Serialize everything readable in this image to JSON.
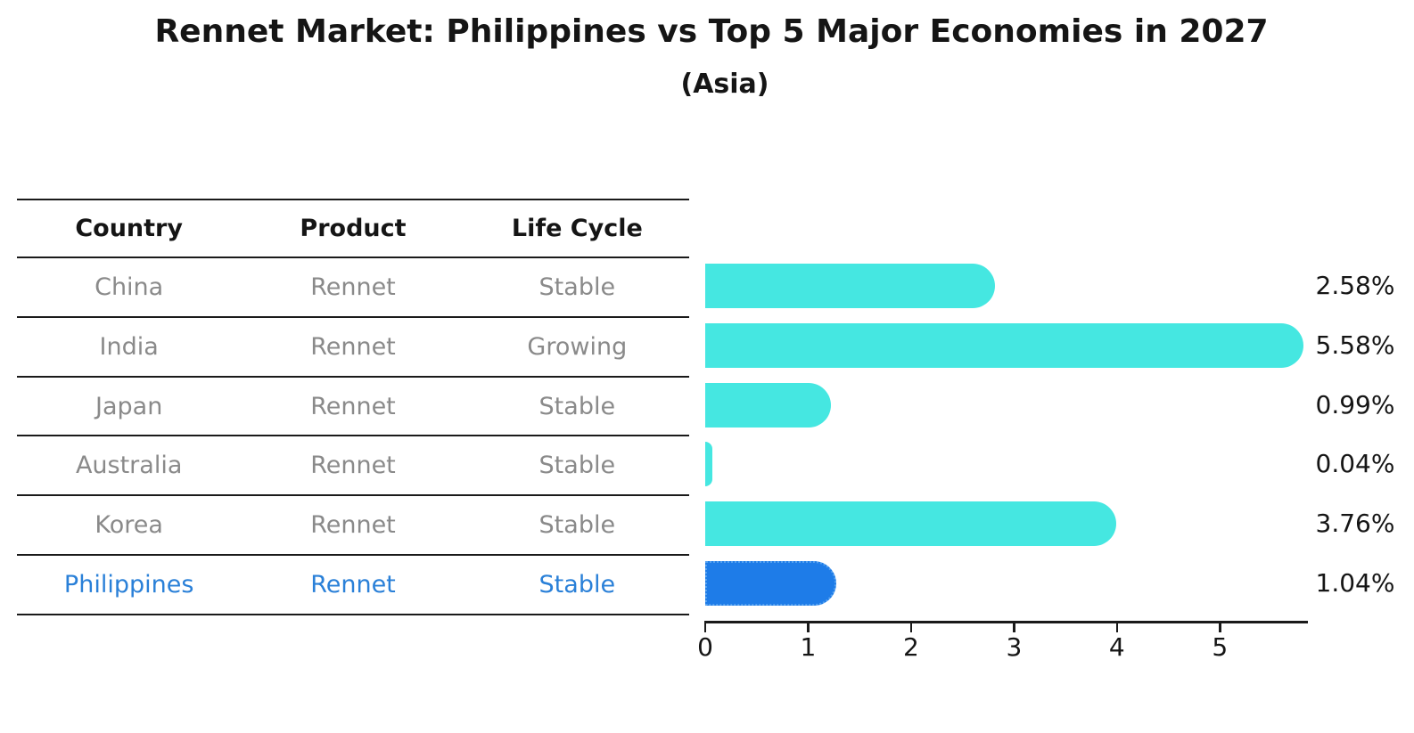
{
  "title": "Rennet Market: Philippines vs Top 5 Major Economies in 2027",
  "subtitle": "(Asia)",
  "table": {
    "headers": [
      "Country",
      "Product",
      "Life Cycle"
    ],
    "rows": [
      {
        "country": "China",
        "product": "Rennet",
        "life_cycle": "Stable"
      },
      {
        "country": "India",
        "product": "Rennet",
        "life_cycle": "Growing"
      },
      {
        "country": "Japan",
        "product": "Rennet",
        "life_cycle": "Stable"
      },
      {
        "country": "Australia",
        "product": "Rennet",
        "life_cycle": "Stable"
      },
      {
        "country": "Korea",
        "product": "Rennet",
        "life_cycle": "Stable"
      },
      {
        "country": "Philippines",
        "product": "Rennet",
        "life_cycle": "Stable"
      }
    ],
    "highlight_row": "Philippines"
  },
  "chart_data": {
    "type": "bar",
    "orientation": "horizontal",
    "title": "Rennet Market: Philippines vs Top 5 Major Economies in 2027",
    "subtitle": "(Asia)",
    "categories": [
      "China",
      "India",
      "Japan",
      "Australia",
      "Korea",
      "Philippines"
    ],
    "values": [
      2.58,
      5.58,
      0.99,
      0.04,
      3.76,
      1.04
    ],
    "labels": [
      "2.58%",
      "5.58%",
      "0.99%",
      "0.04%",
      "3.76%",
      "1.04%"
    ],
    "x_ticks": [
      "0",
      "1",
      "2",
      "3",
      "4",
      "5"
    ],
    "xlim": [
      0,
      5.85
    ],
    "grid": false,
    "legend": false,
    "highlight_index": 5,
    "value_label_position": "right"
  },
  "colors": {
    "bar_cyan": "#45E7E1",
    "bar_blue": "#1E7CE8",
    "bar_blue_border": "#56A2F0",
    "highlight_text": "#2A80D8",
    "table_text_gray": "#8A8A8A",
    "line_black": "#1A1A1A"
  }
}
